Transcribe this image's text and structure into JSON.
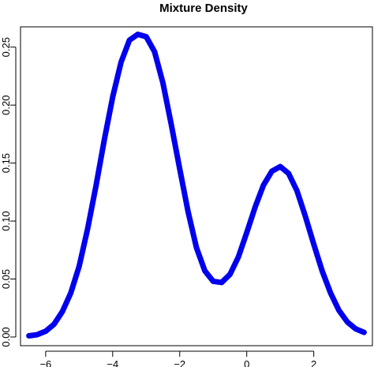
{
  "chart_data": {
    "type": "line",
    "title": "Mixture Density",
    "xlabel": "",
    "ylabel": "",
    "xlim": [
      -6.75,
      3.75
    ],
    "ylim": [
      -0.0075,
      0.2675
    ],
    "x_ticks": [
      -6,
      -4,
      -2,
      0,
      2
    ],
    "x_tick_labels": [
      "−6",
      "−4",
      "−2",
      "0",
      "2"
    ],
    "y_ticks": [
      0.0,
      0.05,
      0.1,
      0.15,
      0.2,
      0.25
    ],
    "y_tick_labels": [
      "0.00",
      "0.05",
      "0.10",
      "0.15",
      "0.20",
      "0.25"
    ],
    "grid": false,
    "legend": "none",
    "series": [
      {
        "color": "#0000ee",
        "x": [
          -6.5,
          -6.25,
          -6.0,
          -5.75,
          -5.5,
          -5.25,
          -5.0,
          -4.75,
          -4.5,
          -4.25,
          -4.0,
          -3.75,
          -3.5,
          -3.25,
          -3.0,
          -2.75,
          -2.5,
          -2.25,
          -2.0,
          -1.75,
          -1.5,
          -1.25,
          -1.0,
          -0.75,
          -0.5,
          -0.25,
          0.0,
          0.25,
          0.5,
          0.75,
          1.0,
          1.25,
          1.5,
          1.75,
          2.0,
          2.25,
          2.5,
          2.75,
          3.0,
          3.25,
          3.5
        ],
        "y": [
          0.001,
          0.002,
          0.005,
          0.011,
          0.022,
          0.038,
          0.061,
          0.093,
          0.13,
          0.17,
          0.207,
          0.237,
          0.256,
          0.261,
          0.259,
          0.246,
          0.219,
          0.183,
          0.145,
          0.108,
          0.077,
          0.057,
          0.048,
          0.047,
          0.054,
          0.069,
          0.09,
          0.112,
          0.131,
          0.143,
          0.147,
          0.141,
          0.126,
          0.104,
          0.08,
          0.057,
          0.038,
          0.023,
          0.013,
          0.007,
          0.004
        ]
      }
    ]
  }
}
